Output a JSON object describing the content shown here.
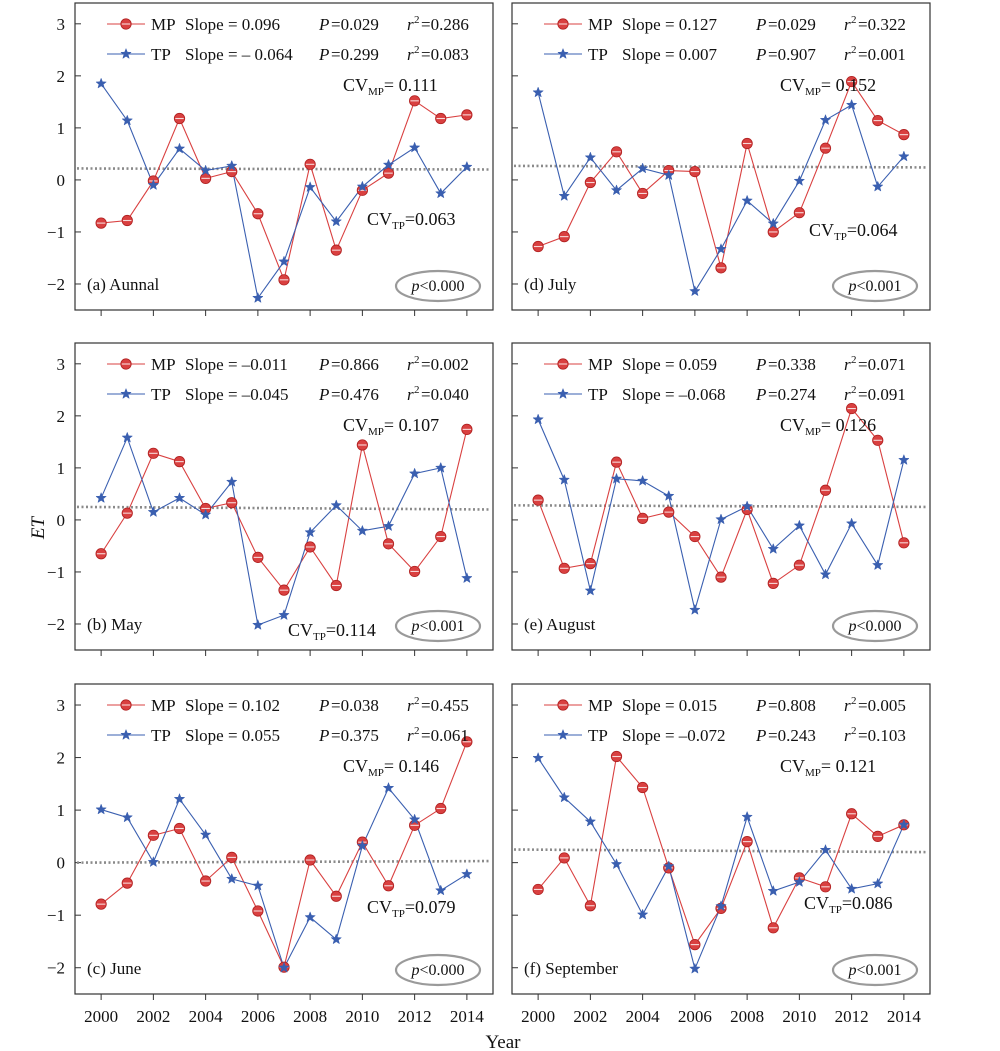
{
  "figure": {
    "ylabel": "ET",
    "xlabel": "Year"
  },
  "chart_data": [
    {
      "id": "a",
      "type": "line",
      "panel_label": "(a) Aunnal",
      "x": [
        2000,
        2001,
        2002,
        2003,
        2004,
        2005,
        2006,
        2007,
        2008,
        2009,
        2010,
        2011,
        2012,
        2013,
        2014
      ],
      "xticks": [
        2000,
        2002,
        2004,
        2006,
        2008,
        2010,
        2012,
        2014
      ],
      "yticks": [
        -2,
        -1,
        0,
        1,
        2,
        3
      ],
      "ylim": [
        -2.5,
        3.4
      ],
      "xlim": [
        1999,
        2015
      ],
      "series": [
        {
          "name": "MP",
          "marker": "circle",
          "color": "#d94040",
          "values": [
            -0.83,
            -0.78,
            -0.02,
            1.18,
            0.03,
            0.16,
            -0.65,
            -1.92,
            0.3,
            -1.35,
            -0.2,
            0.13,
            1.52,
            1.18,
            1.25
          ],
          "legend": {
            "name": "MP",
            "slope": "Slope = 0.096",
            "p": "=0.029",
            "r2": "=0.286"
          }
        },
        {
          "name": "TP",
          "marker": "star",
          "color": "#3a5fb0",
          "values": [
            1.85,
            1.14,
            -0.1,
            0.6,
            0.18,
            0.27,
            -2.27,
            -1.57,
            -0.14,
            -0.8,
            -0.13,
            0.29,
            0.62,
            -0.26,
            0.25
          ],
          "legend": {
            "name": "TP",
            "slope": "Slope = – 0.064",
            "p": "=0.299",
            "r2": "=0.083"
          }
        }
      ],
      "cv_mp": {
        "label": "CV",
        "sub": "MP",
        "value": "= 0.111"
      },
      "cv_tp": {
        "label": "CV",
        "sub": "TP",
        "value": "=0.063"
      },
      "pbox": "<0.000",
      "trend": [
        0.22,
        0.2
      ]
    },
    {
      "id": "b",
      "type": "line",
      "panel_label": "(b) May",
      "x": [
        2000,
        2001,
        2002,
        2003,
        2004,
        2005,
        2006,
        2007,
        2008,
        2009,
        2010,
        2011,
        2012,
        2013,
        2014
      ],
      "xticks": [
        2000,
        2002,
        2004,
        2006,
        2008,
        2010,
        2012,
        2014
      ],
      "yticks": [
        -2,
        -1,
        0,
        1,
        2,
        3
      ],
      "ylim": [
        -2.5,
        3.4
      ],
      "xlim": [
        1999,
        2015
      ],
      "series": [
        {
          "name": "MP",
          "marker": "circle",
          "color": "#d94040",
          "values": [
            -0.65,
            0.13,
            1.28,
            1.12,
            0.22,
            0.33,
            -0.72,
            -1.35,
            -0.52,
            -1.26,
            1.44,
            -0.46,
            -0.99,
            -0.32,
            1.74
          ],
          "legend": {
            "name": "MP",
            "slope": "Slope = –0.011",
            "p": "=0.866",
            "r2": "=0.002"
          }
        },
        {
          "name": "TP",
          "marker": "star",
          "color": "#3a5fb0",
          "values": [
            0.42,
            1.58,
            0.15,
            0.42,
            0.1,
            0.73,
            -2.02,
            -1.83,
            -0.24,
            0.28,
            -0.21,
            -0.12,
            0.89,
            1.0,
            -1.12
          ],
          "legend": {
            "name": "TP",
            "slope": "Slope = –0.045",
            "p": "=0.476",
            "r2": "=0.040"
          }
        }
      ],
      "cv_mp": {
        "label": "CV",
        "sub": "MP",
        "value": "= 0.107"
      },
      "cv_tp": {
        "label": "CV",
        "sub": "TP",
        "value": "=0.114"
      },
      "pbox": "<0.001",
      "trend": [
        0.25,
        0.2
      ]
    },
    {
      "id": "c",
      "type": "line",
      "panel_label": "(c) June",
      "x": [
        2000,
        2001,
        2002,
        2003,
        2004,
        2005,
        2006,
        2007,
        2008,
        2009,
        2010,
        2011,
        2012,
        2013,
        2014
      ],
      "xticks": [
        2000,
        2002,
        2004,
        2006,
        2008,
        2010,
        2012,
        2014
      ],
      "yticks": [
        -2,
        -1,
        0,
        1,
        2,
        3
      ],
      "ylim": [
        -2.5,
        3.4
      ],
      "xlim": [
        1999,
        2015
      ],
      "series": [
        {
          "name": "MP",
          "marker": "circle",
          "color": "#d94040",
          "values": [
            -0.79,
            -0.39,
            0.52,
            0.65,
            -0.35,
            0.1,
            -0.92,
            -1.99,
            0.05,
            -0.64,
            0.39,
            -0.44,
            0.71,
            1.03,
            2.3
          ],
          "legend": {
            "name": "MP",
            "slope": "Slope = 0.102",
            "p": "=0.038",
            "r2": "=0.455"
          }
        },
        {
          "name": "TP",
          "marker": "star",
          "color": "#3a5fb0",
          "values": [
            1.01,
            0.86,
            0.01,
            1.21,
            0.53,
            -0.31,
            -0.44,
            -2.0,
            -1.04,
            -1.46,
            0.32,
            1.42,
            0.82,
            -0.53,
            -0.22
          ],
          "legend": {
            "name": "TP",
            "slope": "Slope = 0.055",
            "p": "=0.375",
            "r2": "=0.061"
          }
        }
      ],
      "cv_mp": {
        "label": "CV",
        "sub": "MP",
        "value": "= 0.146"
      },
      "cv_tp": {
        "label": "CV",
        "sub": "TP",
        "value": "=0.079"
      },
      "pbox": "<0.000",
      "trend": [
        0.0,
        0.03
      ]
    },
    {
      "id": "d",
      "type": "line",
      "panel_label": "(d) July",
      "x": [
        2000,
        2001,
        2002,
        2003,
        2004,
        2005,
        2006,
        2007,
        2008,
        2009,
        2010,
        2011,
        2012,
        2013,
        2014
      ],
      "xticks": [
        2000,
        2002,
        2004,
        2006,
        2008,
        2010,
        2012,
        2014
      ],
      "yticks": [
        -2,
        -1,
        0,
        1,
        2,
        3
      ],
      "ylim": [
        -2.5,
        3.4
      ],
      "xlim": [
        1999,
        2015
      ],
      "series": [
        {
          "name": "MP",
          "marker": "circle",
          "color": "#d94040",
          "values": [
            -1.28,
            -1.09,
            -0.05,
            0.54,
            -0.26,
            0.18,
            0.16,
            -1.69,
            0.7,
            -1.0,
            -0.63,
            0.61,
            1.89,
            1.14,
            0.87
          ],
          "legend": {
            "name": "MP",
            "slope": "Slope = 0.127",
            "p": "=0.029",
            "r2": "=0.322"
          }
        },
        {
          "name": "TP",
          "marker": "star",
          "color": "#3a5fb0",
          "values": [
            1.68,
            -0.31,
            0.43,
            -0.2,
            0.22,
            0.09,
            -2.14,
            -1.33,
            -0.4,
            -0.84,
            -0.02,
            1.15,
            1.44,
            -0.13,
            0.45
          ],
          "legend": {
            "name": "TP",
            "slope": "Slope = 0.007",
            "p": "=0.907",
            "r2": "=0.001"
          }
        }
      ],
      "cv_mp": {
        "label": "CV",
        "sub": "MP",
        "value": "= 0.152"
      },
      "cv_tp": {
        "label": "CV",
        "sub": "TP",
        "value": "=0.064"
      },
      "pbox": "<0.001",
      "trend": [
        0.27,
        0.24
      ]
    },
    {
      "id": "e",
      "type": "line",
      "panel_label": "(e) August",
      "x": [
        2000,
        2001,
        2002,
        2003,
        2004,
        2005,
        2006,
        2007,
        2008,
        2009,
        2010,
        2011,
        2012,
        2013,
        2014
      ],
      "xticks": [
        2000,
        2002,
        2004,
        2006,
        2008,
        2010,
        2012,
        2014
      ],
      "yticks": [
        -2,
        -1,
        0,
        1,
        2,
        3
      ],
      "ylim": [
        -2.5,
        3.4
      ],
      "xlim": [
        1999,
        2015
      ],
      "series": [
        {
          "name": "MP",
          "marker": "circle",
          "color": "#d94040",
          "values": [
            0.38,
            -0.93,
            -0.84,
            1.11,
            0.03,
            0.15,
            -0.32,
            -1.1,
            0.2,
            -1.22,
            -0.87,
            0.57,
            2.14,
            1.53,
            -0.44
          ],
          "legend": {
            "name": "MP",
            "slope": "Slope = 0.059",
            "p": "=0.338",
            "r2": "=0.071"
          }
        },
        {
          "name": "TP",
          "marker": "star",
          "color": "#3a5fb0",
          "values": [
            1.93,
            0.77,
            -1.36,
            0.79,
            0.75,
            0.46,
            -1.73,
            0.01,
            0.26,
            -0.56,
            -0.11,
            -1.05,
            -0.07,
            -0.87,
            1.15
          ],
          "legend": {
            "name": "TP",
            "slope": "Slope = –0.068",
            "p": "=0.274",
            "r2": "=0.091"
          }
        }
      ],
      "cv_mp": {
        "label": "CV",
        "sub": "MP",
        "value": "= 0.126"
      },
      "cv_tp": null,
      "pbox": "<0.000",
      "trend": [
        0.28,
        0.25
      ]
    },
    {
      "id": "f",
      "type": "line",
      "panel_label": "(f) September",
      "x": [
        2000,
        2001,
        2002,
        2003,
        2004,
        2005,
        2006,
        2007,
        2008,
        2009,
        2010,
        2011,
        2012,
        2013,
        2014
      ],
      "xticks": [
        2000,
        2002,
        2004,
        2006,
        2008,
        2010,
        2012,
        2014
      ],
      "yticks": [
        -2,
        -1,
        0,
        1,
        2,
        3
      ],
      "ylim": [
        -2.5,
        3.4
      ],
      "xlim": [
        1999,
        2015
      ],
      "series": [
        {
          "name": "MP",
          "marker": "circle",
          "color": "#d94040",
          "values": [
            -0.51,
            0.09,
            -0.82,
            2.02,
            1.43,
            -0.1,
            -1.56,
            -0.87,
            0.4,
            -1.24,
            -0.29,
            -0.46,
            0.93,
            0.5,
            0.72
          ],
          "legend": {
            "name": "MP",
            "slope": "Slope = 0.015",
            "p": "=0.808",
            "r2": "=0.005"
          }
        },
        {
          "name": "TP",
          "marker": "star",
          "color": "#3a5fb0",
          "values": [
            1.99,
            1.24,
            0.78,
            -0.03,
            -0.99,
            -0.07,
            -2.02,
            -0.83,
            0.87,
            -0.54,
            -0.37,
            0.24,
            -0.5,
            -0.4,
            0.72
          ],
          "legend": {
            "name": "TP",
            "slope": "Slope = –0.072",
            "p": "=0.243",
            "r2": "=0.103"
          }
        }
      ],
      "cv_mp": {
        "label": "CV",
        "sub": "MP",
        "value": "= 0.121"
      },
      "cv_tp": {
        "label": "CV",
        "sub": "TP",
        "value": "=0.086"
      },
      "pbox": "<0.001",
      "trend": [
        0.25,
        0.2
      ]
    }
  ]
}
